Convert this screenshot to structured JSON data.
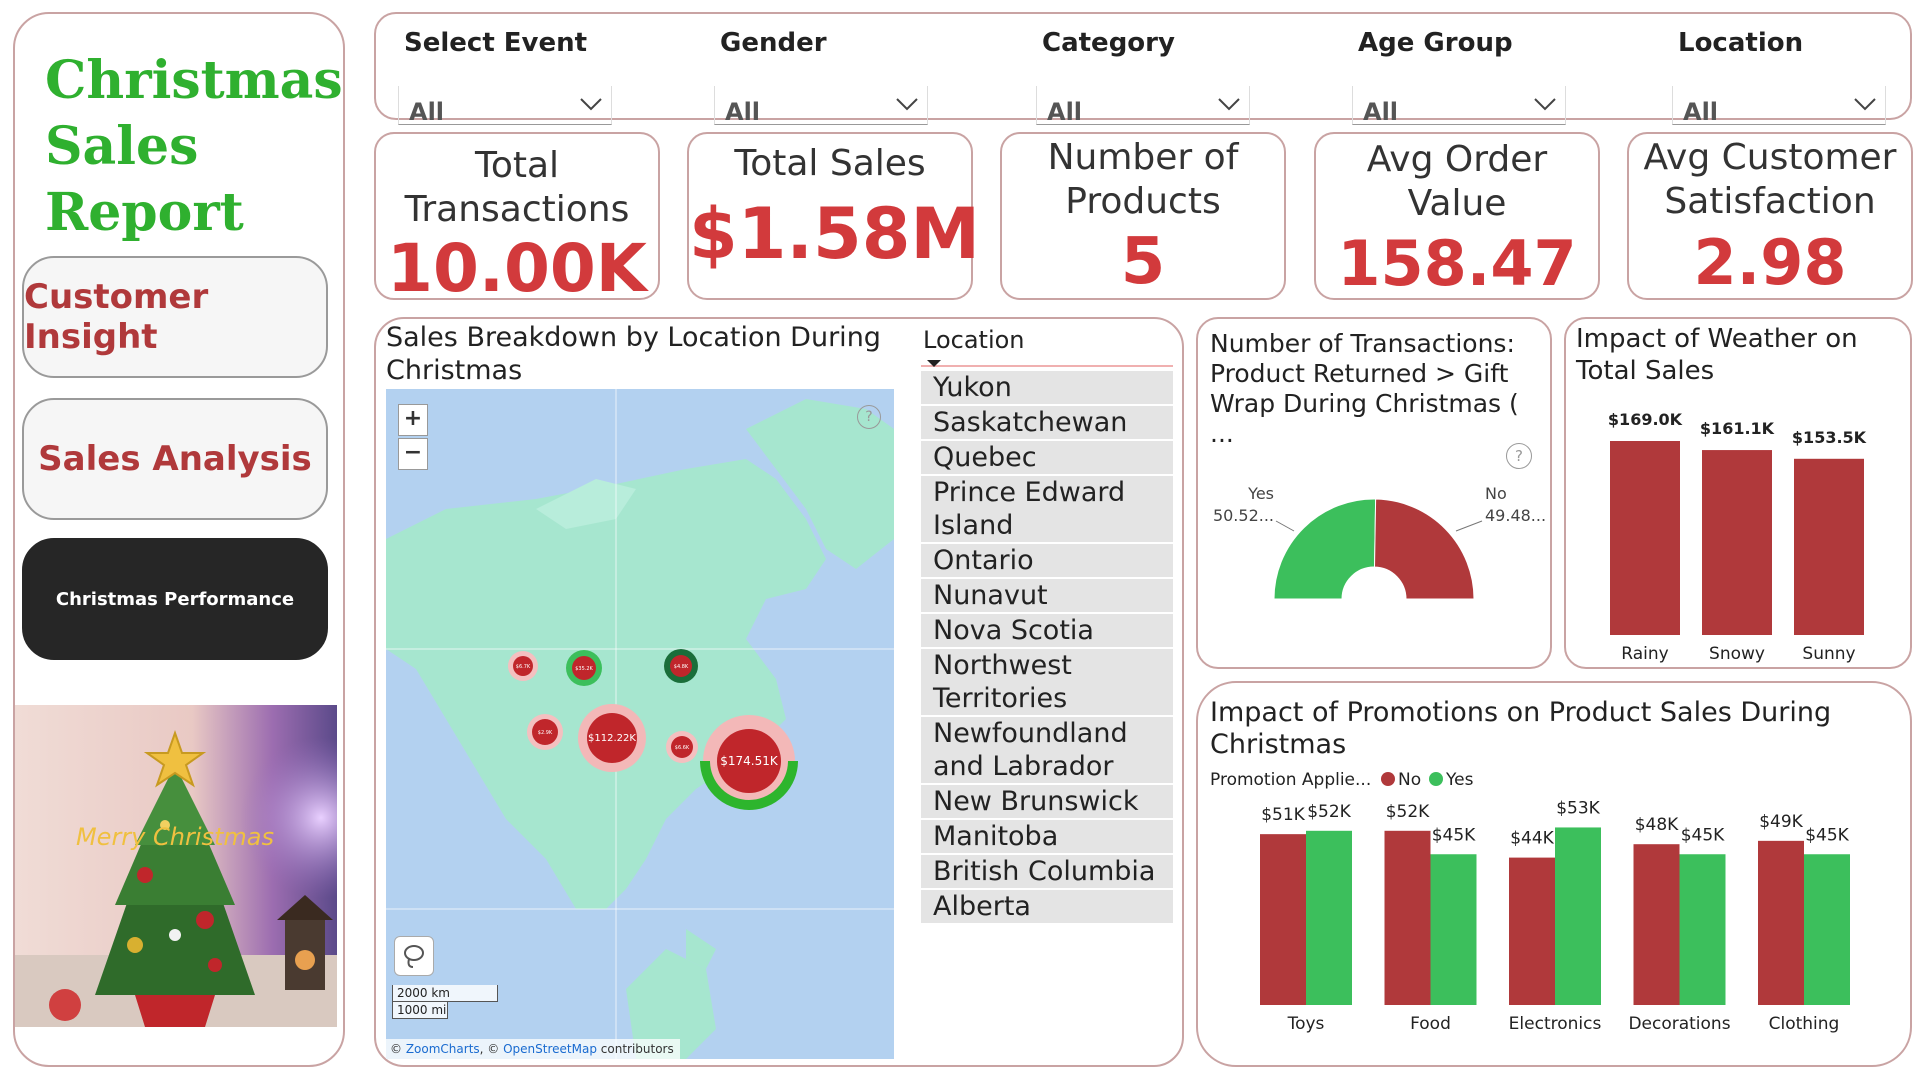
{
  "sidebar": {
    "title_lines": [
      "Christmas",
      "Sales",
      "Report"
    ],
    "nav": [
      {
        "label": "Customer Insight"
      },
      {
        "label": "Sales Analysis"
      },
      {
        "label": "Christmas Performance"
      }
    ],
    "image_text": "Merry Christmas"
  },
  "filters": [
    {
      "label": "Select Event",
      "value": "All"
    },
    {
      "label": "Gender",
      "value": "All"
    },
    {
      "label": "Category",
      "value": "All"
    },
    {
      "label": "Age Group",
      "value": "All"
    },
    {
      "label": "Location",
      "value": "All"
    }
  ],
  "kpis": [
    {
      "title": "Total Transactions",
      "value": "10.00K"
    },
    {
      "title": "Total Sales",
      "value": "$1.58M"
    },
    {
      "title": "Number of Products",
      "value": "5"
    },
    {
      "title": "Avg Order Value",
      "value": "158.47"
    },
    {
      "title": "Avg Customer Satisfaction",
      "value": "2.98"
    }
  ],
  "map": {
    "title": "Sales Breakdown by Location During Christmas",
    "zoom_in": "+",
    "zoom_out": "−",
    "help": "?",
    "scale_km": "2000 km",
    "scale_mi": "1000 mi",
    "credits_prefix": "© ",
    "credits_zc": "ZoomCharts",
    "credits_mid": ", © ",
    "credits_osm": "OpenStreetMap",
    "credits_suffix": " contributors",
    "bubbles": [
      {
        "label": "$174.51K"
      },
      {
        "label": "$112.22K"
      },
      {
        "label": "$6.7K"
      },
      {
        "label": "$35.2K"
      },
      {
        "label": "$4.8K"
      },
      {
        "label": "$2.9K"
      },
      {
        "label": "$6.6K"
      }
    ]
  },
  "location_list": {
    "header": "Location",
    "items": [
      "Yukon",
      "Saskatchewan",
      "Quebec",
      "Prince Edward Island",
      "Ontario",
      "Nunavut",
      "Nova Scotia",
      "Northwest Territories",
      "Newfoundland and Labrador",
      "New Brunswick",
      "Manitoba",
      "British Columbia",
      "Alberta"
    ]
  },
  "gift_chart": {
    "title": "Number of Transactions: Product Returned > Gift Wrap During Christmas ( ...",
    "help": "?",
    "chart_data": {
      "type": "pie",
      "categories": [
        "Yes",
        "No"
      ],
      "values": [
        50.52,
        49.48
      ],
      "labels": [
        "50.52...",
        "49.48..."
      ],
      "colors": [
        "#3cbf5c",
        "#b0393b"
      ]
    }
  },
  "weather_chart": {
    "title": "Impact of Weather on Total Sales",
    "chart_data": {
      "type": "bar",
      "categories": [
        "Rainy",
        "Snowy",
        "Sunny"
      ],
      "values": [
        169.0,
        161.1,
        153.5
      ],
      "value_labels": [
        "$169.0K",
        "$161.1K",
        "$153.5K"
      ],
      "unit": "K",
      "color": "#b0393b"
    }
  },
  "promo_chart": {
    "title": "Impact of Promotions on Product Sales During Christmas",
    "legend_title": "Promotion Applie...",
    "chart_data": {
      "type": "bar",
      "categories": [
        "Toys",
        "Food",
        "Electronics",
        "Decorations",
        "Clothing"
      ],
      "series": [
        {
          "name": "No",
          "color": "#b0393b",
          "values": [
            51,
            52,
            44,
            48,
            49
          ],
          "labels": [
            "$51K",
            "$52K",
            "$44K",
            "$48K",
            "$49K"
          ]
        },
        {
          "name": "Yes",
          "color": "#3cbf5c",
          "values": [
            52,
            45,
            53,
            45,
            45
          ],
          "labels": [
            "$52K",
            "$45K",
            "$53K",
            "$45K",
            "$45K"
          ]
        }
      ]
    }
  }
}
